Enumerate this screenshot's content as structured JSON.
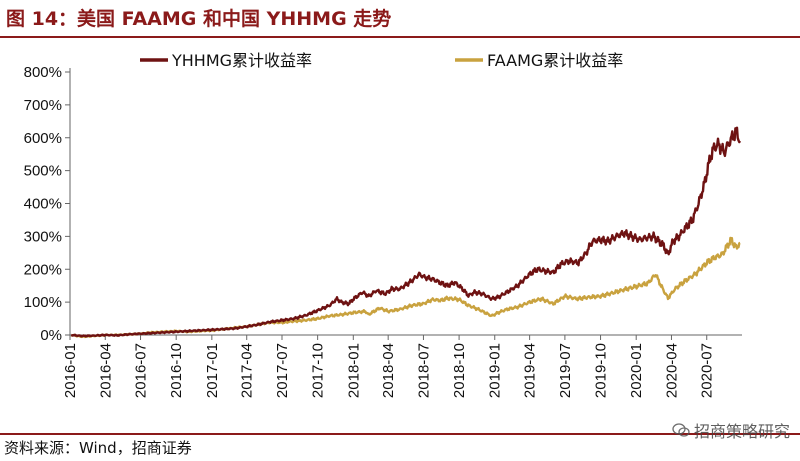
{
  "header": {
    "title": "图 14：美国 FAAMG 和中国 YHHMG 走势"
  },
  "footer": {
    "source": "资料来源：Wind，招商证券",
    "watermark": "招商策略研究"
  },
  "colors": {
    "accent": "#8b1a1a",
    "yhhmg": "#6e1212",
    "faamg": "#c9a23f"
  },
  "chart_data": {
    "type": "line",
    "title": "",
    "xlabel": "",
    "ylabel": "",
    "ylim": [
      0,
      800
    ],
    "y_ticks": [
      "0%",
      "100%",
      "200%",
      "300%",
      "400%",
      "500%",
      "600%",
      "700%",
      "800%"
    ],
    "x_ticks": [
      "2016-01",
      "2016-04",
      "2016-07",
      "2016-10",
      "2017-01",
      "2017-04",
      "2017-07",
      "2017-10",
      "2018-01",
      "2018-04",
      "2018-07",
      "2018-10",
      "2019-01",
      "2019-04",
      "2019-07",
      "2019-10",
      "2020-01",
      "2020-04",
      "2020-07"
    ],
    "x_range": [
      "2016-01",
      "2020-10"
    ],
    "grid": false,
    "legend": "top",
    "series": [
      {
        "name": "YHHMG累计收益率",
        "color": "#6e1212",
        "points": [
          [
            "2016-01-04",
            0
          ],
          [
            "2016-02-01",
            -3
          ],
          [
            "2016-03-01",
            -2
          ],
          [
            "2016-04-01",
            0
          ],
          [
            "2016-05-02",
            -1
          ],
          [
            "2016-06-01",
            2
          ],
          [
            "2016-07-01",
            4
          ],
          [
            "2016-08-01",
            6
          ],
          [
            "2016-09-01",
            8
          ],
          [
            "2016-10-03",
            10
          ],
          [
            "2016-11-01",
            12
          ],
          [
            "2016-12-01",
            14
          ],
          [
            "2017-01-03",
            16
          ],
          [
            "2017-02-01",
            18
          ],
          [
            "2017-03-01",
            20
          ],
          [
            "2017-04-03",
            26
          ],
          [
            "2017-05-01",
            32
          ],
          [
            "2017-06-01",
            40
          ],
          [
            "2017-07-03",
            45
          ],
          [
            "2017-08-01",
            50
          ],
          [
            "2017-09-01",
            60
          ],
          [
            "2017-10-02",
            75
          ],
          [
            "2017-11-01",
            90
          ],
          [
            "2017-11-20",
            110
          ],
          [
            "2017-12-01",
            100
          ],
          [
            "2017-12-20",
            95
          ],
          [
            "2018-01-02",
            110
          ],
          [
            "2018-01-25",
            130
          ],
          [
            "2018-02-10",
            118
          ],
          [
            "2018-03-01",
            135
          ],
          [
            "2018-03-25",
            125
          ],
          [
            "2018-04-10",
            140
          ],
          [
            "2018-05-01",
            140
          ],
          [
            "2018-06-01",
            165
          ],
          [
            "2018-06-20",
            185
          ],
          [
            "2018-07-05",
            175
          ],
          [
            "2018-07-25",
            170
          ],
          [
            "2018-08-15",
            158
          ],
          [
            "2018-09-01",
            150
          ],
          [
            "2018-09-20",
            160
          ],
          [
            "2018-10-10",
            140
          ],
          [
            "2018-10-25",
            120
          ],
          [
            "2018-11-10",
            130
          ],
          [
            "2018-12-01",
            125
          ],
          [
            "2018-12-24",
            110
          ],
          [
            "2019-01-10",
            115
          ],
          [
            "2019-02-01",
            130
          ],
          [
            "2019-03-01",
            150
          ],
          [
            "2019-04-01",
            185
          ],
          [
            "2019-04-20",
            200
          ],
          [
            "2019-05-10",
            195
          ],
          [
            "2019-06-01",
            190
          ],
          [
            "2019-06-20",
            215
          ],
          [
            "2019-07-10",
            225
          ],
          [
            "2019-08-05",
            220
          ],
          [
            "2019-08-25",
            250
          ],
          [
            "2019-09-10",
            285
          ],
          [
            "2019-10-01",
            290
          ],
          [
            "2019-10-20",
            285
          ],
          [
            "2019-11-10",
            300
          ],
          [
            "2019-12-01",
            310
          ],
          [
            "2019-12-20",
            300
          ],
          [
            "2020-01-10",
            290
          ],
          [
            "2020-01-25",
            295
          ],
          [
            "2020-02-15",
            300
          ],
          [
            "2020-02-28",
            285
          ],
          [
            "2020-03-10",
            275
          ],
          [
            "2020-03-23",
            245
          ],
          [
            "2020-04-05",
            285
          ],
          [
            "2020-04-20",
            300
          ],
          [
            "2020-05-10",
            330
          ],
          [
            "2020-05-25",
            350
          ],
          [
            "2020-06-10",
            400
          ],
          [
            "2020-06-25",
            460
          ],
          [
            "2020-07-10",
            540
          ],
          [
            "2020-07-20",
            570
          ],
          [
            "2020-08-01",
            580
          ],
          [
            "2020-08-15",
            555
          ],
          [
            "2020-09-01",
            595
          ],
          [
            "2020-09-15",
            620
          ],
          [
            "2020-09-25",
            590
          ]
        ]
      },
      {
        "name": "FAAMG累计收益率",
        "color": "#c9a23f",
        "points": [
          [
            "2016-01-04",
            0
          ],
          [
            "2016-02-01",
            -5
          ],
          [
            "2016-03-01",
            -3
          ],
          [
            "2016-04-01",
            0
          ],
          [
            "2016-05-02",
            0
          ],
          [
            "2016-06-01",
            2
          ],
          [
            "2016-07-01",
            4
          ],
          [
            "2016-08-01",
            8
          ],
          [
            "2016-09-01",
            10
          ],
          [
            "2016-10-03",
            12
          ],
          [
            "2016-11-01",
            10
          ],
          [
            "2016-12-01",
            12
          ],
          [
            "2017-01-03",
            14
          ],
          [
            "2017-02-01",
            18
          ],
          [
            "2017-03-01",
            22
          ],
          [
            "2017-04-03",
            26
          ],
          [
            "2017-05-01",
            32
          ],
          [
            "2017-06-01",
            38
          ],
          [
            "2017-07-03",
            38
          ],
          [
            "2017-08-01",
            42
          ],
          [
            "2017-09-01",
            45
          ],
          [
            "2017-10-02",
            50
          ],
          [
            "2017-11-01",
            58
          ],
          [
            "2017-12-01",
            62
          ],
          [
            "2018-01-02",
            68
          ],
          [
            "2018-02-01",
            72
          ],
          [
            "2018-02-09",
            62
          ],
          [
            "2018-03-10",
            82
          ],
          [
            "2018-04-01",
            72
          ],
          [
            "2018-05-01",
            78
          ],
          [
            "2018-06-01",
            90
          ],
          [
            "2018-07-01",
            95
          ],
          [
            "2018-07-25",
            108
          ],
          [
            "2018-08-15",
            105
          ],
          [
            "2018-09-01",
            112
          ],
          [
            "2018-10-01",
            108
          ],
          [
            "2018-10-25",
            90
          ],
          [
            "2018-11-20",
            78
          ],
          [
            "2018-12-24",
            58
          ],
          [
            "2019-01-10",
            68
          ],
          [
            "2019-02-01",
            78
          ],
          [
            "2019-03-01",
            85
          ],
          [
            "2019-04-01",
            100
          ],
          [
            "2019-05-01",
            110
          ],
          [
            "2019-06-01",
            95
          ],
          [
            "2019-07-01",
            118
          ],
          [
            "2019-08-01",
            110
          ],
          [
            "2019-09-01",
            115
          ],
          [
            "2019-10-01",
            118
          ],
          [
            "2019-11-01",
            128
          ],
          [
            "2019-12-01",
            138
          ],
          [
            "2020-01-02",
            148
          ],
          [
            "2020-02-01",
            158
          ],
          [
            "2020-02-20",
            185
          ],
          [
            "2020-03-05",
            150
          ],
          [
            "2020-03-23",
            112
          ],
          [
            "2020-04-10",
            140
          ],
          [
            "2020-05-01",
            160
          ],
          [
            "2020-06-01",
            185
          ],
          [
            "2020-07-01",
            220
          ],
          [
            "2020-07-20",
            235
          ],
          [
            "2020-08-10",
            245
          ],
          [
            "2020-09-02",
            290
          ],
          [
            "2020-09-15",
            265
          ],
          [
            "2020-09-25",
            280
          ]
        ]
      }
    ]
  }
}
